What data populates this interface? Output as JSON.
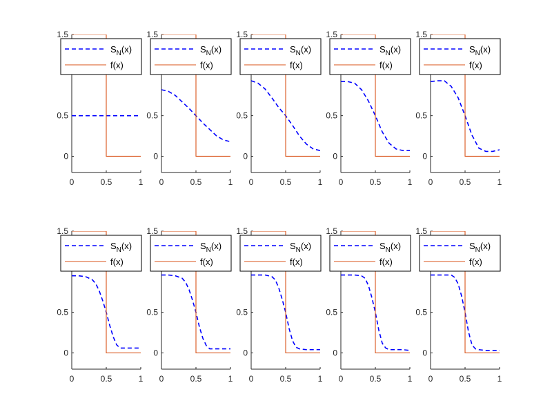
{
  "figure": {
    "title": "",
    "legend_entries": [
      {
        "label_main": "S",
        "label_sub": "N",
        "label_tail": "(x)",
        "style": "dashed"
      },
      {
        "label_main": "f(x)",
        "label_sub": "",
        "label_tail": "",
        "style": "solid"
      }
    ],
    "colors": {
      "series_sn": "#0000ff",
      "series_f": "#d95319",
      "axis": "#262626",
      "background": "#ffffff"
    }
  },
  "chart_data": [
    {
      "type": "line",
      "panel": 1,
      "N": 0,
      "xlim": [
        0,
        1
      ],
      "ylim": [
        -0.2,
        1.5
      ],
      "xticks": [
        0,
        0.5,
        1
      ],
      "xtick_labels": [
        "0",
        "0.5",
        "1"
      ],
      "yticks": [
        0,
        0.5,
        1.5
      ],
      "ytick_labels": [
        "0",
        "0.5",
        "1.5"
      ],
      "series": [
        {
          "name": "S_N(x)",
          "style": "dashed",
          "x": [
            0,
            0.1,
            0.2,
            0.3,
            0.4,
            0.5,
            0.6,
            0.7,
            0.8,
            0.9,
            1.0
          ],
          "y": [
            0.5,
            0.5,
            0.5,
            0.5,
            0.5,
            0.5,
            0.5,
            0.5,
            0.5,
            0.5,
            0.5
          ]
        },
        {
          "name": "f(x)",
          "style": "solid",
          "x": [
            0,
            0.5,
            0.5,
            1.0
          ],
          "y": [
            1.5,
            1.5,
            0,
            0
          ]
        }
      ]
    },
    {
      "type": "line",
      "panel": 2,
      "N": 1,
      "xlim": [
        0,
        1
      ],
      "ylim": [
        -0.2,
        1.5
      ],
      "xticks": [
        0,
        0.5,
        1
      ],
      "xtick_labels": [
        "0",
        "0.5",
        "1"
      ],
      "yticks": [
        0,
        0.5,
        1.5
      ],
      "ytick_labels": [
        "0",
        "0.5",
        "1.5"
      ],
      "series": [
        {
          "name": "S_N(x)",
          "style": "dashed",
          "x": [
            0,
            0.1,
            0.2,
            0.3,
            0.4,
            0.5,
            0.6,
            0.7,
            0.8,
            0.9,
            1.0
          ],
          "y": [
            0.82,
            0.8,
            0.75,
            0.67,
            0.59,
            0.5,
            0.41,
            0.33,
            0.25,
            0.2,
            0.18
          ]
        },
        {
          "name": "f(x)",
          "style": "solid",
          "x": [
            0,
            0.5,
            0.5,
            1.0
          ],
          "y": [
            1.5,
            1.5,
            0,
            0
          ]
        }
      ]
    },
    {
      "type": "line",
      "panel": 3,
      "N": 2,
      "xlim": [
        0,
        1
      ],
      "ylim": [
        -0.2,
        1.5
      ],
      "xticks": [
        0,
        0.5,
        1
      ],
      "xtick_labels": [
        "0",
        "0.5",
        "1"
      ],
      "yticks": [
        0,
        0.5,
        1.5
      ],
      "ytick_labels": [
        "0",
        "0.5",
        "1.5"
      ],
      "series": [
        {
          "name": "S_N(x)",
          "style": "dashed",
          "x": [
            0,
            0.1,
            0.2,
            0.3,
            0.4,
            0.5,
            0.6,
            0.7,
            0.8,
            0.9,
            1.0
          ],
          "y": [
            0.93,
            0.9,
            0.83,
            0.72,
            0.6,
            0.5,
            0.38,
            0.25,
            0.15,
            0.09,
            0.07
          ]
        },
        {
          "name": "f(x)",
          "style": "solid",
          "x": [
            0,
            0.5,
            0.5,
            1.0
          ],
          "y": [
            1.5,
            1.5,
            0,
            0
          ]
        }
      ]
    },
    {
      "type": "line",
      "panel": 4,
      "N": 3,
      "xlim": [
        0,
        1
      ],
      "ylim": [
        -0.2,
        1.5
      ],
      "xticks": [
        0,
        0.5,
        1
      ],
      "xtick_labels": [
        "0",
        "0.5",
        "1"
      ],
      "yticks": [
        0,
        0.5,
        1.5
      ],
      "ytick_labels": [
        "0",
        "0.5",
        "1.5"
      ],
      "series": [
        {
          "name": "S_N(x)",
          "style": "dashed",
          "x": [
            0,
            0.1,
            0.2,
            0.3,
            0.4,
            0.5,
            0.6,
            0.7,
            0.8,
            0.9,
            1.0
          ],
          "y": [
            0.92,
            0.92,
            0.9,
            0.82,
            0.68,
            0.5,
            0.3,
            0.16,
            0.09,
            0.07,
            0.07
          ]
        },
        {
          "name": "f(x)",
          "style": "solid",
          "x": [
            0,
            0.5,
            0.5,
            1.0
          ],
          "y": [
            1.5,
            1.5,
            0,
            0
          ]
        }
      ]
    },
    {
      "type": "line",
      "panel": 5,
      "N": 4,
      "xlim": [
        0,
        1
      ],
      "ylim": [
        -0.2,
        1.5
      ],
      "xticks": [
        0,
        0.5,
        1
      ],
      "xtick_labels": [
        "0",
        "0.5",
        "1"
      ],
      "yticks": [
        0,
        0.5,
        1.5
      ],
      "ytick_labels": [
        "0",
        "0.5",
        "1.5"
      ],
      "series": [
        {
          "name": "S_N(x)",
          "style": "dashed",
          "x": [
            0,
            0.1,
            0.2,
            0.3,
            0.4,
            0.5,
            0.6,
            0.7,
            0.8,
            0.9,
            1.0
          ],
          "y": [
            0.92,
            0.93,
            0.93,
            0.86,
            0.72,
            0.5,
            0.26,
            0.1,
            0.06,
            0.06,
            0.08
          ]
        },
        {
          "name": "f(x)",
          "style": "solid",
          "x": [
            0,
            0.5,
            0.5,
            1.0
          ],
          "y": [
            1.5,
            1.5,
            0,
            0
          ]
        }
      ]
    },
    {
      "type": "line",
      "panel": 6,
      "N": 5,
      "xlim": [
        0,
        1
      ],
      "ylim": [
        -0.2,
        1.5
      ],
      "xticks": [
        0,
        0.5,
        1
      ],
      "xtick_labels": [
        "0",
        "0.5",
        "1"
      ],
      "yticks": [
        0,
        0.5,
        1.5
      ],
      "ytick_labels": [
        "0",
        "0.5",
        "1.5"
      ],
      "series": [
        {
          "name": "S_N(x)",
          "style": "dashed",
          "x": [
            0,
            0.1,
            0.2,
            0.3,
            0.35,
            0.4,
            0.45,
            0.5,
            0.55,
            0.6,
            0.65,
            0.7,
            0.8,
            0.9,
            1.0
          ],
          "y": [
            0.95,
            0.95,
            0.94,
            0.9,
            0.85,
            0.76,
            0.64,
            0.5,
            0.34,
            0.2,
            0.1,
            0.06,
            0.06,
            0.06,
            0.06
          ]
        },
        {
          "name": "f(x)",
          "style": "solid",
          "x": [
            0,
            0.5,
            0.5,
            1.0
          ],
          "y": [
            1.5,
            1.5,
            0,
            0
          ]
        }
      ]
    },
    {
      "type": "line",
      "panel": 7,
      "N": 6,
      "xlim": [
        0,
        1
      ],
      "ylim": [
        -0.2,
        1.5
      ],
      "xticks": [
        0,
        0.5,
        1
      ],
      "xtick_labels": [
        "0",
        "0.5",
        "1"
      ],
      "yticks": [
        0,
        0.5,
        1.5
      ],
      "ytick_labels": [
        "0",
        "0.5",
        "1.5"
      ],
      "series": [
        {
          "name": "S_N(x)",
          "style": "dashed",
          "x": [
            0,
            0.1,
            0.2,
            0.3,
            0.35,
            0.4,
            0.45,
            0.5,
            0.55,
            0.6,
            0.65,
            0.7,
            0.8,
            0.9,
            1.0
          ],
          "y": [
            0.96,
            0.96,
            0.95,
            0.92,
            0.87,
            0.78,
            0.65,
            0.5,
            0.32,
            0.18,
            0.09,
            0.05,
            0.05,
            0.05,
            0.05
          ]
        },
        {
          "name": "f(x)",
          "style": "solid",
          "x": [
            0,
            0.5,
            0.5,
            1.0
          ],
          "y": [
            1.5,
            1.5,
            0,
            0
          ]
        }
      ]
    },
    {
      "type": "line",
      "panel": 8,
      "N": 7,
      "xlim": [
        0,
        1
      ],
      "ylim": [
        -0.2,
        1.5
      ],
      "xticks": [
        0,
        0.5,
        1
      ],
      "xtick_labels": [
        "0",
        "0.5",
        "1"
      ],
      "yticks": [
        0,
        0.5,
        1.5
      ],
      "ytick_labels": [
        "0",
        "0.5",
        "1.5"
      ],
      "series": [
        {
          "name": "S_N(x)",
          "style": "dashed",
          "x": [
            0,
            0.1,
            0.2,
            0.3,
            0.35,
            0.4,
            0.45,
            0.5,
            0.55,
            0.6,
            0.65,
            0.7,
            0.8,
            0.9,
            1.0
          ],
          "y": [
            0.96,
            0.96,
            0.96,
            0.94,
            0.9,
            0.8,
            0.66,
            0.5,
            0.3,
            0.15,
            0.07,
            0.05,
            0.04,
            0.04,
            0.04
          ]
        },
        {
          "name": "f(x)",
          "style": "solid",
          "x": [
            0,
            0.5,
            0.5,
            1.0
          ],
          "y": [
            1.5,
            1.5,
            0,
            0
          ]
        }
      ]
    },
    {
      "type": "line",
      "panel": 9,
      "N": 8,
      "xlim": [
        0,
        1
      ],
      "ylim": [
        -0.2,
        1.5
      ],
      "xticks": [
        0,
        0.5,
        1
      ],
      "xtick_labels": [
        "0",
        "0.5",
        "1"
      ],
      "yticks": [
        0,
        0.5,
        1.5
      ],
      "ytick_labels": [
        "0",
        "0.5",
        "1.5"
      ],
      "series": [
        {
          "name": "S_N(x)",
          "style": "dashed",
          "x": [
            0,
            0.1,
            0.2,
            0.3,
            0.35,
            0.4,
            0.45,
            0.5,
            0.55,
            0.6,
            0.65,
            0.7,
            0.8,
            0.9,
            1.0
          ],
          "y": [
            0.96,
            0.96,
            0.96,
            0.95,
            0.92,
            0.83,
            0.68,
            0.5,
            0.28,
            0.12,
            0.06,
            0.04,
            0.04,
            0.04,
            0.03
          ]
        },
        {
          "name": "f(x)",
          "style": "solid",
          "x": [
            0,
            0.5,
            0.5,
            1.0
          ],
          "y": [
            1.5,
            1.5,
            0,
            0
          ]
        }
      ]
    },
    {
      "type": "line",
      "panel": 10,
      "N": 9,
      "xlim": [
        0,
        1
      ],
      "ylim": [
        -0.2,
        1.5
      ],
      "xticks": [
        0,
        0.5,
        1
      ],
      "xtick_labels": [
        "0",
        "0.5",
        "1"
      ],
      "yticks": [
        0,
        0.5,
        1.5
      ],
      "ytick_labels": [
        "0",
        "0.5",
        "1.5"
      ],
      "series": [
        {
          "name": "S_N(x)",
          "style": "dashed",
          "x": [
            0,
            0.1,
            0.2,
            0.3,
            0.35,
            0.4,
            0.45,
            0.5,
            0.55,
            0.6,
            0.65,
            0.7,
            0.8,
            0.9,
            1.0
          ],
          "y": [
            0.96,
            0.96,
            0.96,
            0.96,
            0.93,
            0.85,
            0.7,
            0.5,
            0.26,
            0.1,
            0.05,
            0.04,
            0.03,
            0.03,
            0.03
          ]
        },
        {
          "name": "f(x)",
          "style": "solid",
          "x": [
            0,
            0.5,
            0.5,
            1.0
          ],
          "y": [
            1.5,
            1.5,
            0,
            0
          ]
        }
      ]
    }
  ]
}
